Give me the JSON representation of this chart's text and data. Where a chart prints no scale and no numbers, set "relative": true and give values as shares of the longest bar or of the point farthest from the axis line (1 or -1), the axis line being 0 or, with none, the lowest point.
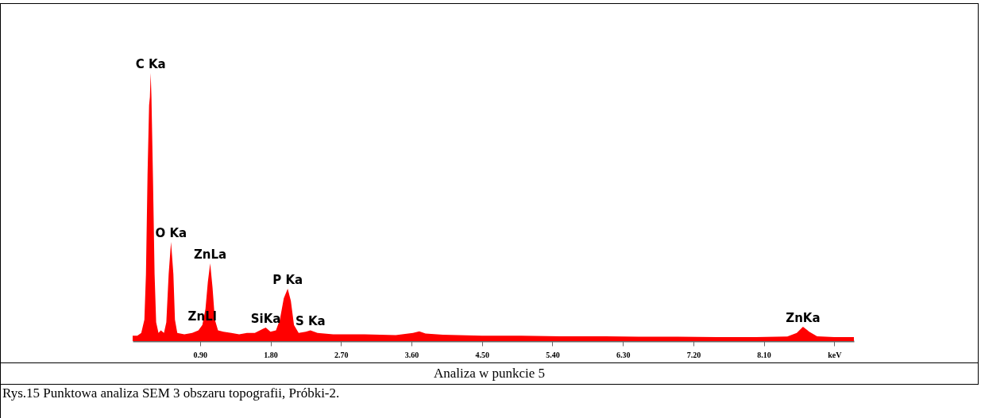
{
  "chart_data": {
    "type": "area",
    "relative": true,
    "xlim": [
      0.04,
      9.25
    ],
    "xticks": [
      {
        "value": 0.9,
        "label": "0.90"
      },
      {
        "value": 1.8,
        "label": "1.80"
      },
      {
        "value": 2.7,
        "label": "2.70"
      },
      {
        "value": 3.6,
        "label": "3.60"
      },
      {
        "value": 4.5,
        "label": "4.50"
      },
      {
        "value": 5.4,
        "label": "5.40"
      },
      {
        "value": 6.3,
        "label": "6.30"
      },
      {
        "value": 7.2,
        "label": "7.20"
      },
      {
        "value": 8.1,
        "label": "8.10"
      },
      {
        "value": 9.0,
        "label": "keV"
      }
    ],
    "grid": false,
    "series": [
      {
        "color": "#ff0000",
        "x": [
          0.04,
          0.1,
          0.15,
          0.19,
          0.21,
          0.23,
          0.25,
          0.26,
          0.27,
          0.28,
          0.3,
          0.32,
          0.34,
          0.37,
          0.4,
          0.44,
          0.47,
          0.5,
          0.53,
          0.56,
          0.58,
          0.61,
          0.7,
          0.8,
          0.88,
          0.93,
          0.97,
          1.0,
          1.03,
          1.06,
          1.09,
          1.13,
          1.2,
          1.3,
          1.4,
          1.5,
          1.6,
          1.7,
          1.74,
          1.8,
          1.87,
          1.92,
          1.97,
          2.02,
          2.06,
          2.1,
          2.16,
          2.25,
          2.31,
          2.4,
          2.6,
          3.0,
          3.4,
          3.62,
          3.7,
          3.78,
          4.0,
          4.5,
          5.0,
          5.5,
          6.0,
          6.5,
          7.0,
          7.5,
          8.0,
          8.4,
          8.52,
          8.6,
          8.68,
          8.78,
          9.0,
          9.25
        ],
        "values": [
          0.02,
          0.02,
          0.03,
          0.08,
          0.25,
          0.62,
          0.88,
          0.91,
          1.0,
          0.91,
          0.6,
          0.25,
          0.07,
          0.03,
          0.04,
          0.03,
          0.07,
          0.25,
          0.37,
          0.25,
          0.08,
          0.03,
          0.025,
          0.03,
          0.04,
          0.06,
          0.12,
          0.22,
          0.29,
          0.2,
          0.08,
          0.04,
          0.035,
          0.03,
          0.025,
          0.03,
          0.03,
          0.045,
          0.05,
          0.035,
          0.04,
          0.08,
          0.16,
          0.195,
          0.15,
          0.06,
          0.03,
          0.035,
          0.04,
          0.03,
          0.025,
          0.025,
          0.022,
          0.03,
          0.036,
          0.028,
          0.024,
          0.02,
          0.02,
          0.018,
          0.018,
          0.016,
          0.016,
          0.015,
          0.015,
          0.017,
          0.03,
          0.053,
          0.035,
          0.018,
          0.015,
          0.015
        ]
      }
    ],
    "annotations": [
      {
        "text": "C Ka",
        "x": 0.27,
        "y": 1.0
      },
      {
        "text": "O Ka",
        "x": 0.53,
        "y": 0.37
      },
      {
        "text": "ZnLa",
        "x": 1.03,
        "y": 0.29
      },
      {
        "text": "ZnLl",
        "x": 0.93,
        "y": 0.06
      },
      {
        "text": "SiKa",
        "x": 1.74,
        "y": 0.05
      },
      {
        "text": "P Ka",
        "x": 2.02,
        "y": 0.195
      },
      {
        "text": "S Ka",
        "x": 2.31,
        "y": 0.04
      },
      {
        "text": "ZnKa",
        "x": 8.6,
        "y": 0.053
      },
      "Analiza w punkcie 5",
      "Rys.15 Punktowa analiza SEM 3 obszaru topografii, Próbki-2."
    ]
  }
}
